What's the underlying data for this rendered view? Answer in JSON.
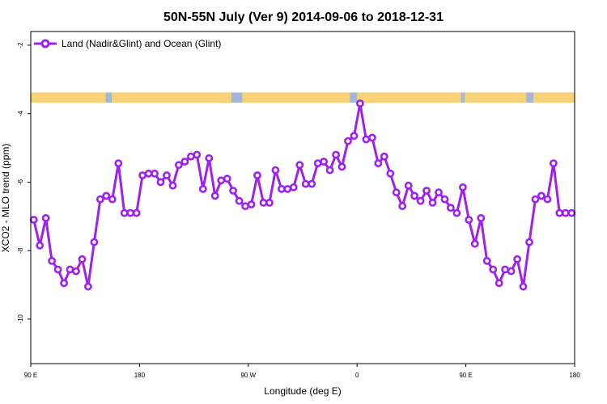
{
  "chart_data": {
    "type": "line",
    "title": "50N-55N July (Ver 9)   2014-09-06 to 2018-12-31",
    "xlabel": "Longitude (deg E)",
    "ylabel": "XCO2 - MLO trend (ppm)",
    "xlim": [
      90,
      540
    ],
    "ylim": [
      -11.3,
      -1.6
    ],
    "x_ticks": [
      {
        "value": 90,
        "label": "90 E"
      },
      {
        "value": 180,
        "label": "180"
      },
      {
        "value": 270,
        "label": "90 W"
      },
      {
        "value": 360,
        "label": "0"
      },
      {
        "value": 450,
        "label": "90 E"
      },
      {
        "value": 540,
        "label": "180"
      }
    ],
    "y_ticks": [
      {
        "value": -2,
        "label": "-2"
      },
      {
        "value": -4,
        "label": "-4"
      },
      {
        "value": -6,
        "label": "-6"
      },
      {
        "value": -8,
        "label": "-8"
      },
      {
        "value": -10,
        "label": "-10"
      }
    ],
    "grid": false,
    "legend_position": "top-left",
    "series": [
      {
        "name": "Land (Nadir&Glint) and Ocean (Glint)",
        "color": "#a020f0",
        "x": [
          92.5,
          97.5,
          102.5,
          107.5,
          112.5,
          117.5,
          122.5,
          127.5,
          132.5,
          137.5,
          142.5,
          147.5,
          152.5,
          157.5,
          162.5,
          167.5,
          172.5,
          177.5,
          182.5,
          187.5,
          192.5,
          197.5,
          202.5,
          207.5,
          212.5,
          217.5,
          222.5,
          227.5,
          232.5,
          237.5,
          242.5,
          247.5,
          252.5,
          257.5,
          262.5,
          267.5,
          272.5,
          277.5,
          282.5,
          287.5,
          292.5,
          297.5,
          302.5,
          307.5,
          312.5,
          317.5,
          322.5,
          327.5,
          332.5,
          337.5,
          342.5,
          347.5,
          352.5,
          357.5,
          362.5,
          367.5,
          372.5,
          377.5,
          382.5,
          387.5,
          392.5,
          397.5,
          402.5,
          407.5,
          412.5,
          417.5,
          422.5,
          427.5,
          432.5,
          437.5,
          442.5,
          447.5,
          452.5,
          457.5,
          462.5,
          467.5,
          472.5,
          477.5,
          482.5,
          487.5,
          492.5,
          497.5,
          502.5,
          507.5,
          512.5,
          517.5,
          522.5,
          527.5,
          532.5,
          537.5
        ],
        "y": [
          -7.1,
          -7.85,
          -7.05,
          -8.3,
          -8.55,
          -8.95,
          -8.55,
          -8.6,
          -8.25,
          -9.05,
          -7.75,
          -6.5,
          -6.4,
          -6.5,
          -5.45,
          -6.9,
          -6.9,
          -6.9,
          -5.8,
          -5.75,
          -5.75,
          -6.0,
          -5.8,
          -6.1,
          -5.5,
          -5.4,
          -5.25,
          -5.2,
          -6.2,
          -5.3,
          -6.4,
          -5.95,
          -5.9,
          -6.25,
          -6.55,
          -6.7,
          -6.65,
          -5.8,
          -6.6,
          -6.6,
          -5.65,
          -6.2,
          -6.2,
          -6.15,
          -5.5,
          -6.05,
          -6.05,
          -5.45,
          -5.4,
          -5.65,
          -5.2,
          -5.55,
          -4.8,
          -4.65,
          -3.7,
          -4.75,
          -4.7,
          -5.45,
          -5.25,
          -5.75,
          -6.3,
          -6.7,
          -6.1,
          -6.4,
          -6.55,
          -6.25,
          -6.6,
          -6.3,
          -6.5,
          -6.75,
          -6.9,
          -6.15,
          -7.1,
          -7.8,
          -7.05,
          -8.3,
          -8.55,
          -8.95,
          -8.55,
          -8.6,
          -8.25,
          -9.05,
          -7.75,
          -6.5,
          -6.4,
          -6.5,
          -5.45,
          -6.9,
          -6.9,
          -6.9
        ]
      }
    ],
    "land_mask_band": {
      "y_range": [
        -3.38,
        -3.68
      ],
      "ocean_color": "#a3b7d8",
      "land_color": "#f7d277",
      "land_intervals": [
        [
          90,
          152
        ],
        [
          157,
          256
        ],
        [
          265,
          354
        ],
        [
          360,
          446
        ],
        [
          449,
          500
        ],
        [
          506,
          540
        ]
      ]
    }
  }
}
